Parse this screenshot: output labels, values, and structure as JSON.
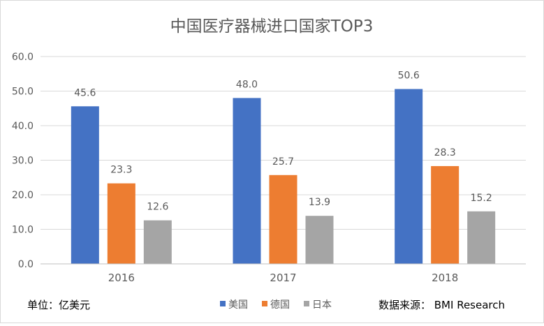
{
  "chart_data": {
    "type": "bar",
    "title": "中国医疗器械进口国家TOP3",
    "categories": [
      "2016",
      "2017",
      "2018"
    ],
    "series": [
      {
        "name": "美国",
        "color": "#4472C4",
        "values": [
          45.6,
          48.0,
          50.6
        ]
      },
      {
        "name": "德国",
        "color": "#ED7D31",
        "values": [
          23.3,
          25.7,
          28.3
        ]
      },
      {
        "name": "日本",
        "color": "#A5A5A5",
        "values": [
          12.6,
          13.9,
          15.2
        ]
      }
    ],
    "data_labels": [
      [
        "45.6",
        "23.3",
        "12.6"
      ],
      [
        "48.0",
        "25.7",
        "13.9"
      ],
      [
        "50.6",
        "28.3",
        "15.2"
      ]
    ],
    "yticks": [
      "0.0",
      "10.0",
      "20.0",
      "30.0",
      "40.0",
      "50.0",
      "60.0"
    ],
    "ylim": [
      0,
      60
    ],
    "grid": true,
    "legend_position": "bottom"
  },
  "footer": {
    "unit_note": "单位：亿美元",
    "source_note": "数据来源：  BMI Research"
  }
}
